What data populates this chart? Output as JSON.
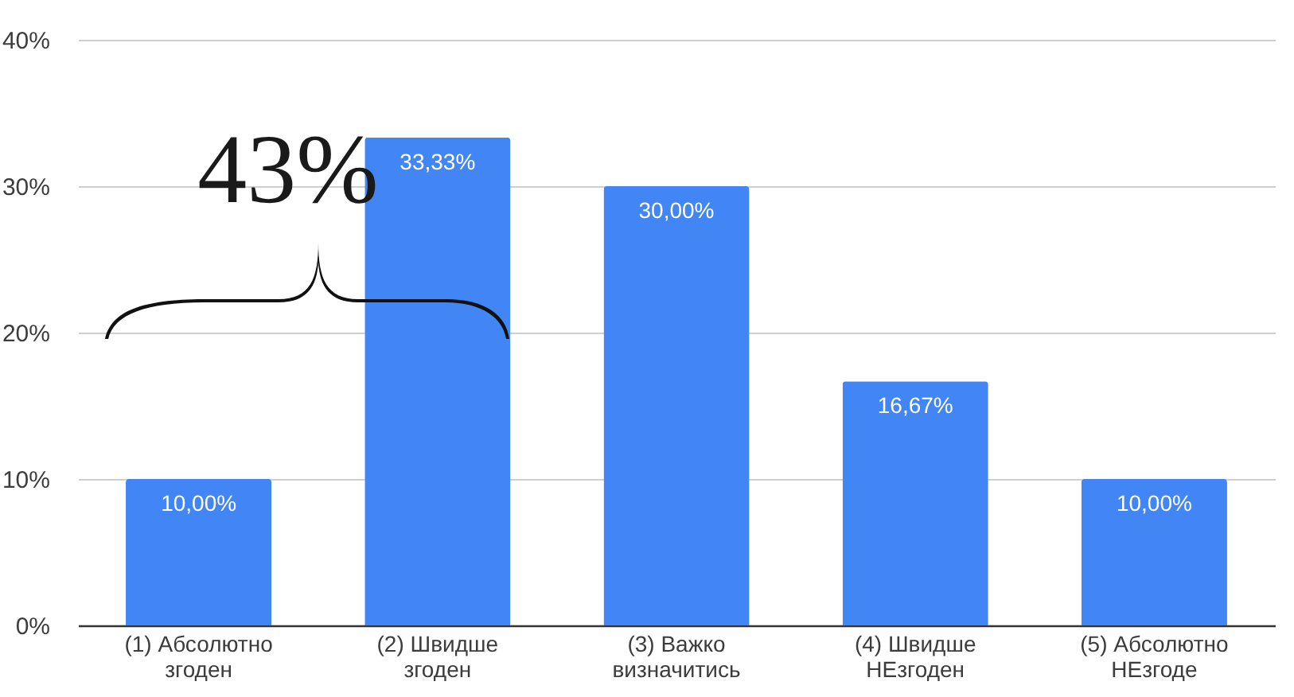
{
  "chart_data": {
    "type": "bar",
    "categories": [
      "(1) Абсолютно згоден",
      "(2) Швидше згоден",
      "(3) Важко визначитись",
      "(4) Швидше НЕзгоден",
      "(5) Абсолютно НЕзгоде"
    ],
    "values": [
      10,
      33.33,
      30,
      16.67,
      10
    ],
    "value_labels": [
      "10,00%",
      "33,33%",
      "30,00%",
      "16,67%",
      "10,00%"
    ],
    "color": "#4285f4",
    "ylim": [
      0,
      40
    ],
    "yticks": [
      {
        "value": 0,
        "label": "0%"
      },
      {
        "value": 10,
        "label": "10%"
      },
      {
        "value": 20,
        "label": "20%"
      },
      {
        "value": 30,
        "label": "30%"
      },
      {
        "value": 40,
        "label": "40%"
      }
    ],
    "grid": "y",
    "annotations": [
      "43%"
    ]
  }
}
